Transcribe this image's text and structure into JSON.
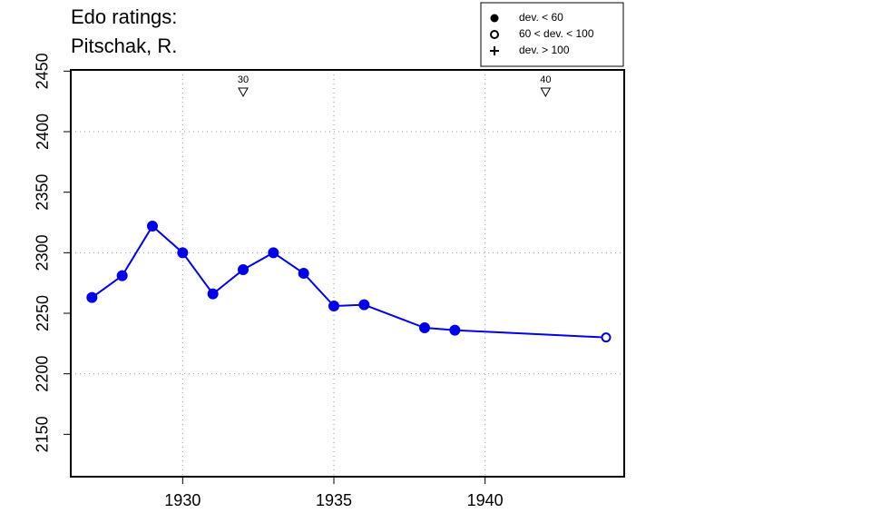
{
  "chart_data": {
    "type": "line",
    "title": [
      "Edo ratings:",
      "Pitschak, R."
    ],
    "series": [
      {
        "name": "Pitschak, R.",
        "color": "#0000ee",
        "x": [
          1927,
          1928,
          1929,
          1930,
          1931,
          1932,
          1933,
          1934,
          1935,
          1936,
          1938,
          1939,
          1944
        ],
        "values": [
          2263,
          2281,
          2322,
          2300,
          2266,
          2286,
          2300,
          2283,
          2256,
          2257,
          2238,
          2236,
          2230
        ],
        "markers": [
          "filled",
          "filled",
          "filled",
          "filled",
          "filled",
          "filled",
          "filled",
          "filled",
          "filled",
          "filled",
          "filled",
          "filled",
          "open"
        ]
      }
    ],
    "xlim": [
      1926.3,
      1944.6
    ],
    "ylim": [
      2115,
      2451
    ],
    "xticks": [
      1930,
      1935,
      1940
    ],
    "yticks": [
      2150,
      2200,
      2250,
      2300,
      2350,
      2400,
      2450
    ],
    "grid": true,
    "ygrid": [
      2200,
      2300,
      2400
    ],
    "annotations": [
      {
        "x": 1932,
        "label": "30"
      },
      {
        "x": 1942,
        "label": "40"
      }
    ],
    "legend_position": "top-right",
    "legend": [
      {
        "label": "dev. < 60",
        "symbol": "filled"
      },
      {
        "label": "60 < dev. < 100",
        "symbol": "open"
      },
      {
        "label": "dev. > 100",
        "symbol": "plus"
      }
    ]
  }
}
